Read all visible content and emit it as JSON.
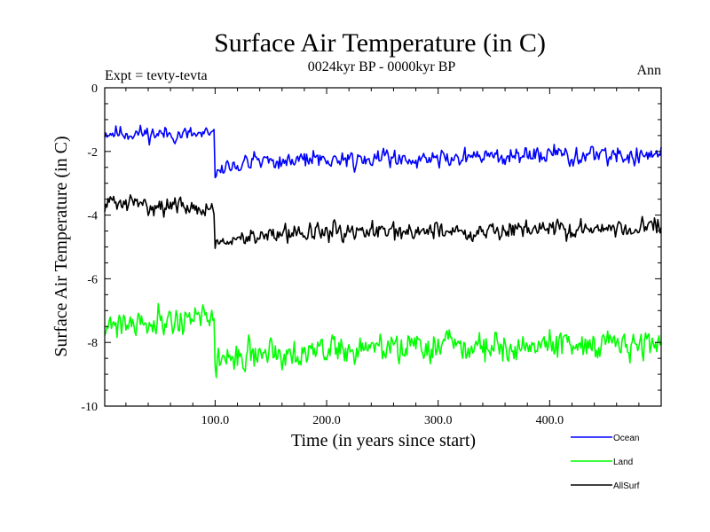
{
  "chart_data": {
    "type": "line",
    "title": "Surface Air Temperature (in C)",
    "subtitle": "0024kyr BP - 0000kyr BP",
    "left_note": "Expt = tevty-tevta",
    "right_note": "Ann",
    "xlabel": "Time (in years since start)",
    "ylabel": "Surface Air Temperature (in C)",
    "xlim": [
      1,
      500
    ],
    "ylim": [
      -10,
      0
    ],
    "x_ticks": [
      100,
      200,
      300,
      400
    ],
    "x_tick_labels": [
      "100.0",
      "200.0",
      "300.0",
      "400.0"
    ],
    "y_ticks": [
      0,
      -2,
      -4,
      -6,
      -8,
      -10
    ],
    "y_tick_labels": [
      "0",
      "-2",
      "-4",
      "-6",
      "-8",
      "-10"
    ],
    "grid": false,
    "legend_position": "bottom-right",
    "series": [
      {
        "name": "Ocean",
        "color": "#0000ff",
        "segments": [
          {
            "x_start": 1,
            "x_end": 99,
            "mean_start": -1.4,
            "mean_end": -1.5,
            "noise": 0.12,
            "seed": 11
          },
          {
            "x_start": 100,
            "x_end": 500,
            "mean_start": -2.3,
            "mean_end": -2.1,
            "noise": 0.13,
            "seed": 12
          }
        ],
        "dip": {
          "x_start": 100,
          "x_end": 140,
          "depth": -0.3
        }
      },
      {
        "name": "Land",
        "color": "#00ff00",
        "segments": [
          {
            "x_start": 1,
            "x_end": 99,
            "mean_start": -7.4,
            "mean_end": -7.2,
            "noise": 0.22,
            "seed": 21
          },
          {
            "x_start": 100,
            "x_end": 500,
            "mean_start": -8.3,
            "mean_end": -8.0,
            "noise": 0.22,
            "seed": 22
          }
        ],
        "dip": {
          "x_start": 100,
          "x_end": 140,
          "depth": -0.4
        }
      },
      {
        "name": "AllSurf",
        "color": "#000000",
        "segments": [
          {
            "x_start": 1,
            "x_end": 99,
            "mean_start": -3.6,
            "mean_end": -3.8,
            "noise": 0.13,
            "seed": 31
          },
          {
            "x_start": 100,
            "x_end": 500,
            "mean_start": -4.6,
            "mean_end": -4.4,
            "noise": 0.14,
            "seed": 32
          }
        ],
        "dip": {
          "x_start": 100,
          "x_end": 140,
          "depth": -0.35
        }
      }
    ]
  }
}
